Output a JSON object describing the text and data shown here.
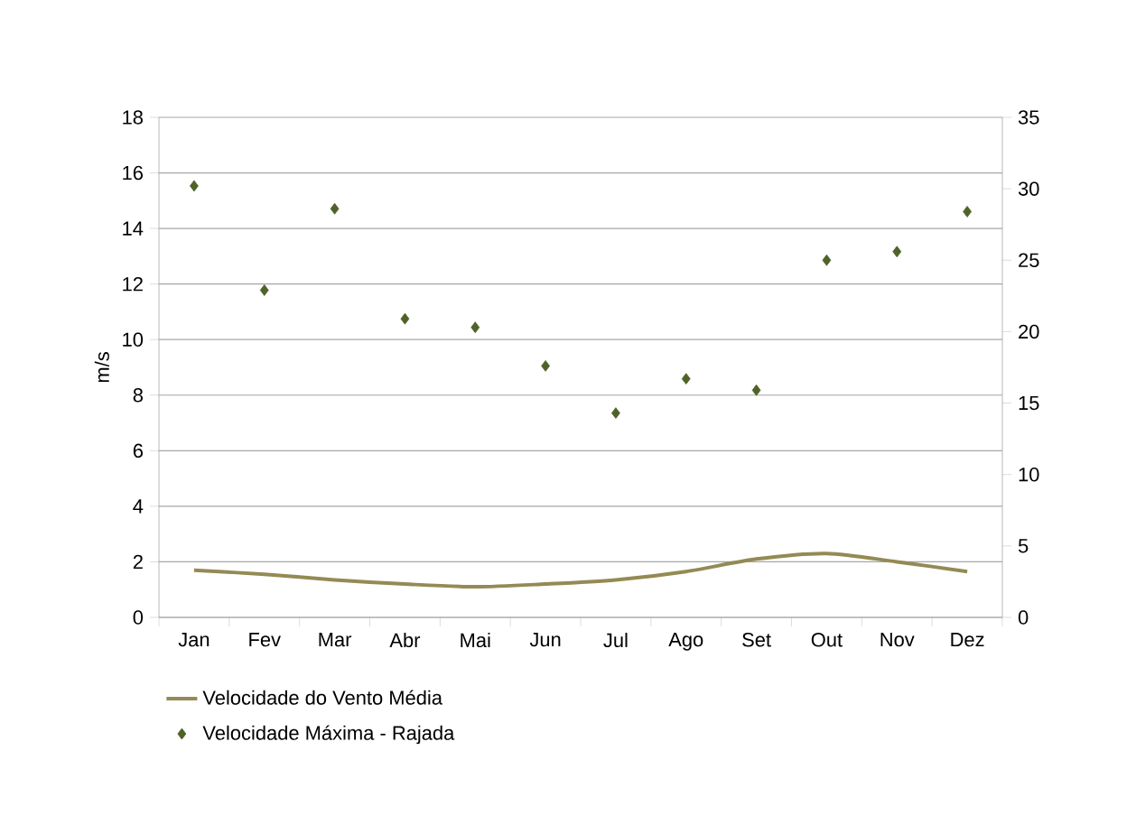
{
  "chart_data": {
    "type": "line",
    "ylabel": "m/s",
    "categories": [
      "Jan",
      "Fev",
      "Mar",
      "Abr",
      "Mai",
      "Jun",
      "Jul",
      "Ago",
      "Set",
      "Out",
      "Nov",
      "Dez"
    ],
    "series": [
      {
        "name": "Velocidade do Vento Média",
        "color": "#948a54",
        "values": [
          1.7,
          1.55,
          1.35,
          1.2,
          1.1,
          1.2,
          1.35,
          1.65,
          2.1,
          2.3,
          2.0,
          1.65
        ]
      },
      {
        "name": "Velocidade Máxima - Rajada",
        "type": "scatter",
        "axis": "y2",
        "marker": "diamond",
        "color": "#4f6228",
        "values": [
          30.2,
          22.9,
          28.6,
          20.9,
          20.3,
          17.6,
          14.3,
          16.7,
          15.9,
          25.0,
          25.6,
          28.4
        ]
      }
    ],
    "ylim": [
      0,
      18
    ],
    "yticks": [
      0,
      2,
      4,
      6,
      8,
      10,
      12,
      14,
      16,
      18
    ],
    "y2lim": [
      0,
      35
    ],
    "y2ticks": [
      0,
      5,
      10,
      15,
      20,
      25,
      30,
      35
    ],
    "grid": "y",
    "legend": "bottom"
  }
}
